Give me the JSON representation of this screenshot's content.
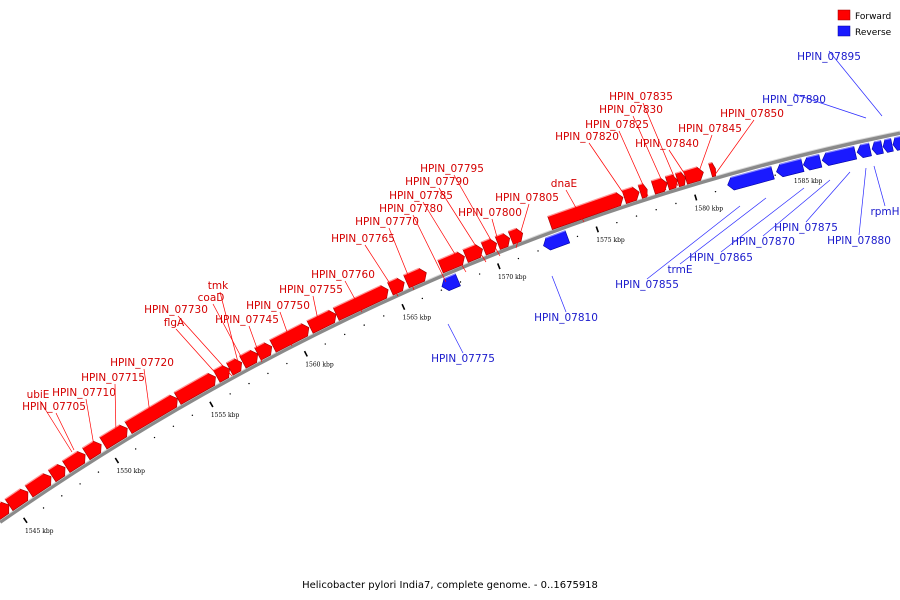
{
  "caption": "Helicobacter pylori India7, complete genome. - 0..1675918",
  "legend": {
    "forward_label": "Forward",
    "reverse_label": "Reverse",
    "forward_color": "#ff0000",
    "reverse_color": "#1a1aff"
  },
  "ticks": [
    "1545 kbp",
    "1550 kbp",
    "1555 kbp",
    "1560 kbp",
    "1565 kbp",
    "1570 kbp",
    "1575 kbp",
    "1580 kbp",
    "1585 kbp"
  ],
  "forward_genes": [
    "ubiE",
    "HPIN_07705",
    "HPIN_07710",
    "HPIN_07715",
    "HPIN_07720",
    "HPIN_07730",
    "flgA",
    "tmk",
    "coaD",
    "HPIN_07745",
    "HPIN_07750",
    "HPIN_07755",
    "HPIN_07760",
    "HPIN_07765",
    "HPIN_07770",
    "HPIN_07780",
    "HPIN_07785",
    "HPIN_07790",
    "HPIN_07795",
    "HPIN_07800",
    "HPIN_07805",
    "dnaE",
    "HPIN_07820",
    "HPIN_07825",
    "HPIN_07830",
    "HPIN_07835",
    "HPIN_07840",
    "HPIN_07845",
    "HPIN_07850"
  ],
  "reverse_genes": [
    "HPIN_07775",
    "HPIN_07810",
    "HPIN_07855",
    "trmE",
    "HPIN_07865",
    "HPIN_07870",
    "HPIN_07875",
    "HPIN_07880",
    "rpmH",
    "HPIN_07890",
    "HPIN_07895"
  ]
}
